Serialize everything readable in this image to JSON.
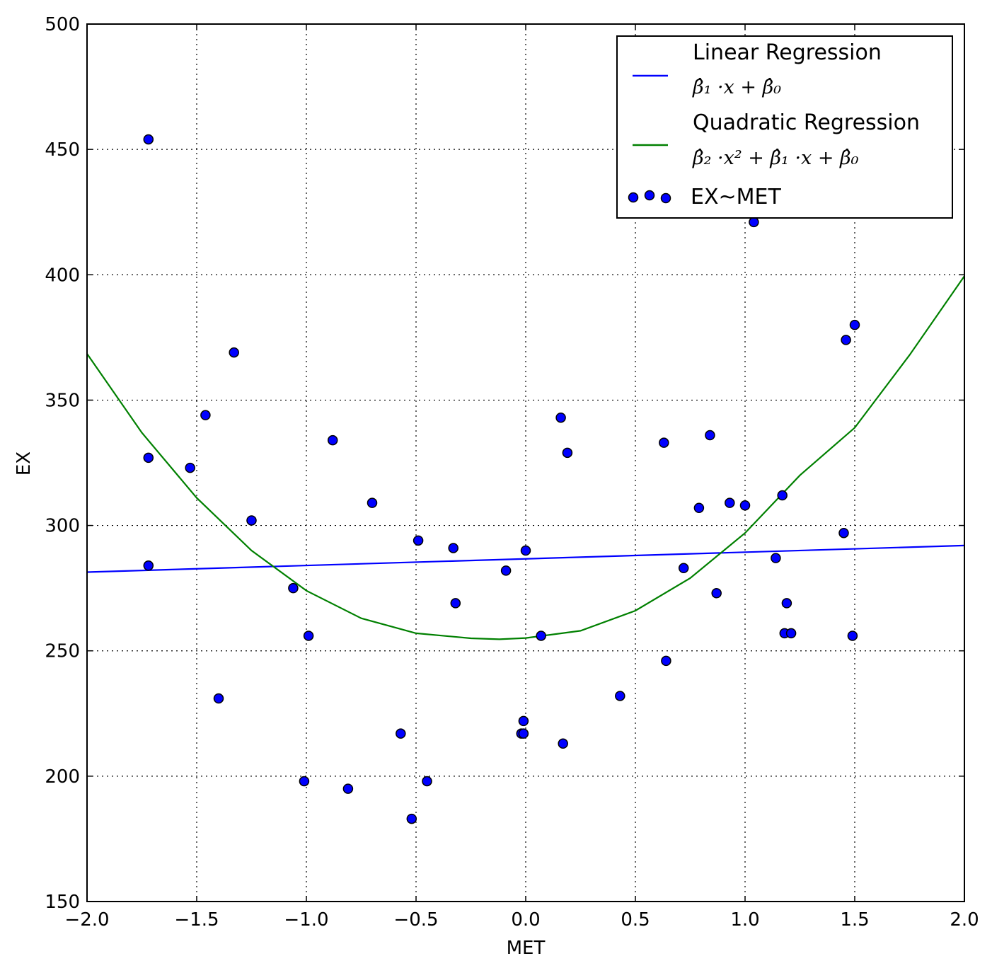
{
  "chart_data": {
    "type": "scatter",
    "xlabel": "MET",
    "ylabel": "EX",
    "xlim": [
      -2.0,
      2.0
    ],
    "ylim": [
      150,
      500
    ],
    "xticks": [
      -2.0,
      -1.5,
      -1.0,
      -0.5,
      0.0,
      0.5,
      1.0,
      1.5,
      2.0
    ],
    "xtick_labels": [
      "−2.0",
      "−1.5",
      "−1.0",
      "−0.5",
      "0.0",
      "0.5",
      "1.0",
      "1.5",
      "2.0"
    ],
    "yticks": [
      150,
      200,
      250,
      300,
      350,
      400,
      450,
      500
    ],
    "ytick_labels": [
      "150",
      "200",
      "250",
      "300",
      "350",
      "400",
      "450",
      "500"
    ],
    "grid": true,
    "legend_position": "top-right",
    "series": [
      {
        "name": "Linear Regression",
        "formula": "β̂₁ ·x + β̂₀",
        "kind": "line",
        "color": "#0000ff",
        "x": [
          -2.0,
          2.0
        ],
        "y": [
          281.4,
          292.0
        ]
      },
      {
        "name": "Quadratic Regression",
        "formula": "β̂₂ ·x² + β̂₁ ·x + β̂₀",
        "kind": "curve",
        "color": "#008000",
        "x": [
          -2.0,
          -1.75,
          -1.5,
          -1.25,
          -1.0,
          -0.75,
          -0.5,
          -0.25,
          -0.12,
          0.0,
          0.25,
          0.5,
          0.75,
          1.0,
          1.25,
          1.5,
          1.75,
          2.0
        ],
        "y": [
          368.5,
          337.0,
          311.0,
          290.0,
          274.0,
          263.0,
          257.0,
          255.0,
          254.6,
          255.1,
          258.0,
          266.0,
          279.0,
          297.0,
          320.0,
          339.0,
          368.0,
          399.5
        ]
      },
      {
        "name": "EX~MET",
        "kind": "scatter",
        "color": "#0000ff",
        "x": [
          -1.72,
          -1.72,
          -1.72,
          -1.53,
          -1.46,
          -1.4,
          -1.33,
          -1.25,
          -1.06,
          -1.01,
          -0.99,
          -0.88,
          -0.81,
          -0.7,
          -0.57,
          -0.52,
          -0.49,
          -0.45,
          -0.33,
          -0.32,
          -0.09,
          -0.02,
          -0.01,
          -0.01,
          0.0,
          0.07,
          0.16,
          0.17,
          0.19,
          0.43,
          0.63,
          0.64,
          0.72,
          0.79,
          0.84,
          0.87,
          0.93,
          1.0,
          1.04,
          1.14,
          1.17,
          1.18,
          1.19,
          1.21,
          1.45,
          1.46,
          1.49,
          1.5
        ],
        "y": [
          454,
          327,
          284,
          323,
          344,
          231,
          369,
          302,
          275,
          198,
          256,
          334,
          195,
          309,
          217,
          183,
          294,
          198,
          291,
          269,
          282,
          217,
          217,
          222,
          290,
          256,
          343,
          213,
          329,
          232,
          333,
          246,
          283,
          307,
          336,
          273,
          309,
          308,
          421,
          287,
          312,
          257,
          269,
          257,
          297,
          374,
          256,
          380
        ]
      }
    ]
  }
}
